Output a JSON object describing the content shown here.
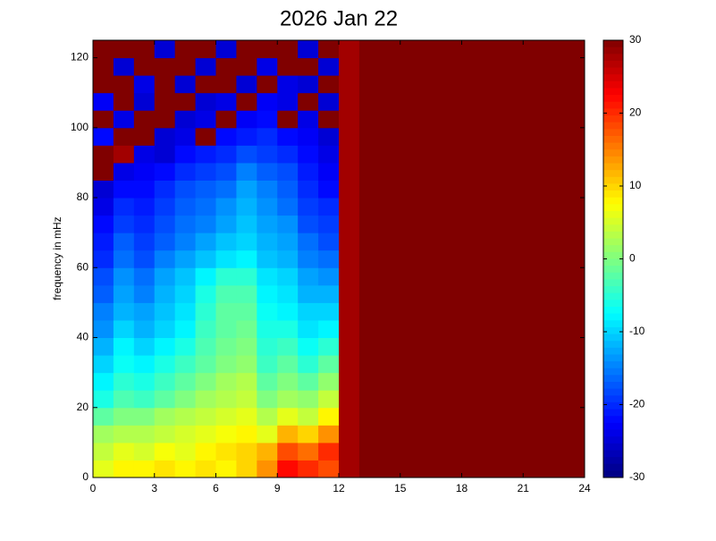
{
  "chart_data": {
    "type": "heatmap",
    "title": "2026 Jan 22",
    "ylabel": "frequency in mHz",
    "colormap": "jet",
    "clim": [
      -30,
      30
    ],
    "cticks": [
      -30,
      -20,
      -10,
      0,
      10,
      20,
      30
    ],
    "xlim": [
      0,
      24
    ],
    "xticks": [
      0,
      3,
      6,
      9,
      12,
      15,
      18,
      21,
      24
    ],
    "ylim": [
      0,
      125
    ],
    "yticks": [
      0,
      20,
      40,
      60,
      80,
      100,
      120
    ],
    "x_edges": [
      0,
      1,
      2,
      3,
      4,
      5,
      6,
      7,
      8,
      9,
      10,
      11,
      12,
      13,
      14,
      15,
      16,
      17,
      18,
      19,
      20,
      21,
      22,
      23,
      24
    ],
    "y_edges": [
      0,
      5,
      10,
      15,
      20,
      25,
      30,
      35,
      40,
      45,
      50,
      55,
      60,
      65,
      70,
      75,
      80,
      85,
      90,
      95,
      100,
      105,
      110,
      115,
      120,
      125
    ],
    "z": [
      [
        6,
        8,
        8,
        9,
        8,
        9,
        8,
        10,
        14,
        22,
        20,
        18,
        28,
        30,
        30,
        30,
        30,
        30,
        30,
        30,
        30,
        30,
        30,
        30
      ],
      [
        4,
        6,
        5,
        7,
        6,
        8,
        9,
        10,
        12,
        18,
        16,
        20,
        28,
        30,
        30,
        30,
        30,
        30,
        30,
        30,
        30,
        30,
        30,
        30
      ],
      [
        2,
        3,
        3,
        4,
        5,
        6,
        7,
        8,
        6,
        12,
        10,
        14,
        28,
        30,
        30,
        30,
        30,
        30,
        30,
        30,
        30,
        30,
        30,
        30
      ],
      [
        -2,
        0,
        0,
        2,
        3,
        4,
        5,
        6,
        3,
        6,
        4,
        8,
        28,
        30,
        30,
        30,
        30,
        30,
        30,
        30,
        30,
        30,
        30,
        30
      ],
      [
        -6,
        -3,
        -4,
        -2,
        0,
        2,
        3,
        4,
        0,
        2,
        1,
        4,
        28,
        30,
        30,
        30,
        30,
        30,
        30,
        30,
        30,
        30,
        30,
        30
      ],
      [
        -8,
        -5,
        -6,
        -4,
        -2,
        0,
        2,
        3,
        -2,
        0,
        -2,
        1,
        28,
        30,
        30,
        30,
        30,
        30,
        30,
        30,
        30,
        30,
        30,
        30
      ],
      [
        -10,
        -7,
        -8,
        -6,
        -4,
        -2,
        0,
        1,
        -4,
        -2,
        -5,
        -2,
        28,
        30,
        30,
        30,
        30,
        30,
        30,
        30,
        30,
        30,
        30,
        30
      ],
      [
        -12,
        -8,
        -10,
        -8,
        -6,
        -3,
        -1,
        0,
        -5,
        -4,
        -7,
        -5,
        28,
        30,
        30,
        30,
        30,
        30,
        30,
        30,
        30,
        30,
        30,
        30
      ],
      [
        -14,
        -10,
        -12,
        -10,
        -8,
        -4,
        -2,
        -1,
        -6,
        -6,
        -9,
        -8,
        28,
        30,
        30,
        30,
        30,
        30,
        30,
        30,
        30,
        30,
        30,
        30
      ],
      [
        -15,
        -12,
        -13,
        -11,
        -9,
        -5,
        -2,
        -2,
        -7,
        -8,
        -10,
        -10,
        28,
        30,
        30,
        30,
        30,
        30,
        30,
        30,
        30,
        30,
        30,
        30
      ],
      [
        -17,
        -13,
        -15,
        -12,
        -10,
        -6,
        -3,
        -3,
        -8,
        -9,
        -12,
        -12,
        28,
        30,
        30,
        30,
        30,
        30,
        30,
        30,
        30,
        30,
        30,
        30
      ],
      [
        -18,
        -14,
        -16,
        -13,
        -11,
        -8,
        -5,
        -5,
        -9,
        -10,
        -13,
        -14,
        28,
        30,
        30,
        30,
        30,
        30,
        30,
        30,
        30,
        30,
        30,
        30
      ],
      [
        -20,
        -16,
        -18,
        -15,
        -13,
        -11,
        -9,
        -8,
        -11,
        -12,
        -15,
        -16,
        28,
        30,
        30,
        30,
        30,
        30,
        30,
        30,
        30,
        30,
        30,
        30
      ],
      [
        -21,
        -17,
        -19,
        -17,
        -15,
        -13,
        -11,
        -10,
        -12,
        -13,
        -16,
        -18,
        28,
        30,
        30,
        30,
        30,
        30,
        30,
        30,
        30,
        30,
        30,
        30
      ],
      [
        -22,
        -19,
        -20,
        -18,
        -16,
        -15,
        -13,
        -11,
        -13,
        -14,
        -18,
        -19,
        28,
        30,
        30,
        30,
        30,
        30,
        30,
        30,
        30,
        30,
        30,
        30
      ],
      [
        -24,
        -20,
        -21,
        -19,
        -17,
        -16,
        -14,
        -12,
        -14,
        -16,
        -19,
        -20,
        28,
        30,
        30,
        30,
        30,
        30,
        30,
        30,
        30,
        30,
        30,
        30
      ],
      [
        -25,
        -22,
        -22,
        -20,
        -18,
        -17,
        -16,
        -13,
        -15,
        -17,
        -20,
        -22,
        28,
        30,
        30,
        30,
        30,
        30,
        30,
        30,
        30,
        30,
        30,
        30
      ],
      [
        30,
        -24,
        -23,
        -22,
        -20,
        -19,
        -18,
        -15,
        -17,
        -18,
        -21,
        -23,
        28,
        30,
        30,
        30,
        30,
        30,
        30,
        30,
        30,
        30,
        30,
        30
      ],
      [
        30,
        28,
        -24,
        -25,
        -22,
        -21,
        -20,
        -18,
        -19,
        -20,
        -22,
        -24,
        28,
        30,
        30,
        30,
        30,
        30,
        30,
        30,
        30,
        30,
        30,
        30
      ],
      [
        -22,
        30,
        30,
        -25,
        -24,
        30,
        -22,
        -21,
        -20,
        -22,
        -23,
        -25,
        28,
        30,
        30,
        30,
        30,
        30,
        30,
        30,
        30,
        30,
        30,
        30
      ],
      [
        30,
        -24,
        30,
        30,
        -25,
        -24,
        30,
        -23,
        -22,
        30,
        -24,
        30,
        28,
        30,
        30,
        30,
        30,
        30,
        30,
        30,
        30,
        30,
        30,
        30
      ],
      [
        -23,
        30,
        -25,
        30,
        30,
        -25,
        -24,
        30,
        -23,
        -24,
        30,
        -25,
        28,
        30,
        30,
        30,
        30,
        30,
        30,
        30,
        30,
        30,
        30,
        30
      ],
      [
        30,
        30,
        -24,
        30,
        -25,
        30,
        30,
        -25,
        30,
        -24,
        -25,
        30,
        28,
        30,
        30,
        30,
        30,
        30,
        30,
        30,
        30,
        30,
        30,
        30
      ],
      [
        30,
        -25,
        30,
        30,
        30,
        -25,
        30,
        30,
        -24,
        30,
        30,
        -25,
        28,
        30,
        30,
        30,
        30,
        30,
        30,
        30,
        30,
        30,
        30,
        30
      ],
      [
        30,
        30,
        30,
        -25,
        30,
        30,
        -25,
        30,
        30,
        30,
        -25,
        30,
        28,
        30,
        30,
        30,
        30,
        30,
        30,
        30,
        30,
        30,
        30,
        30
      ]
    ]
  }
}
